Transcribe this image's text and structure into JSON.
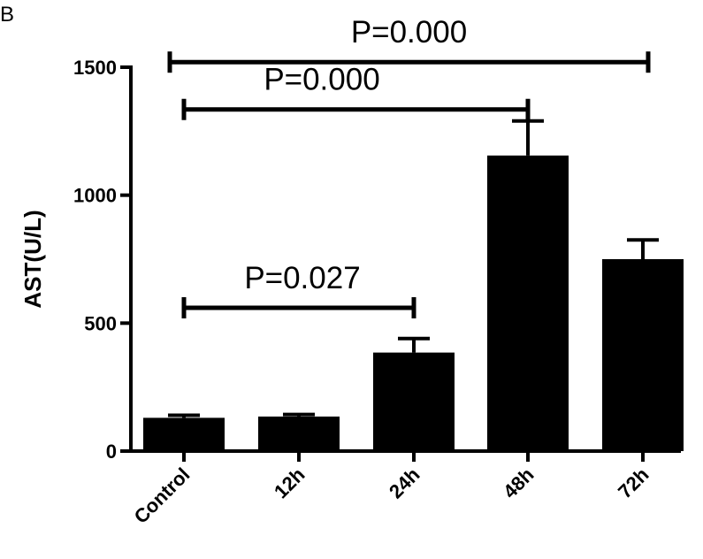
{
  "panel_label": "B",
  "chart_data": {
    "type": "bar",
    "title": "",
    "xlabel": "",
    "ylabel": "AST(U/L)",
    "categories": [
      "Control",
      "12h",
      "24h",
      "48h",
      "72h"
    ],
    "values": [
      130,
      135,
      385,
      1155,
      750
    ],
    "errors": [
      10,
      8,
      55,
      135,
      75
    ],
    "ylim": [
      0,
      1500
    ],
    "yticks": [
      0,
      500,
      1000,
      1500
    ],
    "ytick_labels": [
      "0",
      "500",
      "1000",
      "1500"
    ],
    "bar_color": "#000000",
    "grid": false,
    "annotations": [
      {
        "label": "P=0.027",
        "from": "Control",
        "to": "24h",
        "level": 560
      },
      {
        "label": "P=0.000",
        "from": "Control",
        "to": "48h",
        "level": 1335
      },
      {
        "label": "P=0.000",
        "from": "Control",
        "to": "72h",
        "level": 1520
      }
    ]
  }
}
